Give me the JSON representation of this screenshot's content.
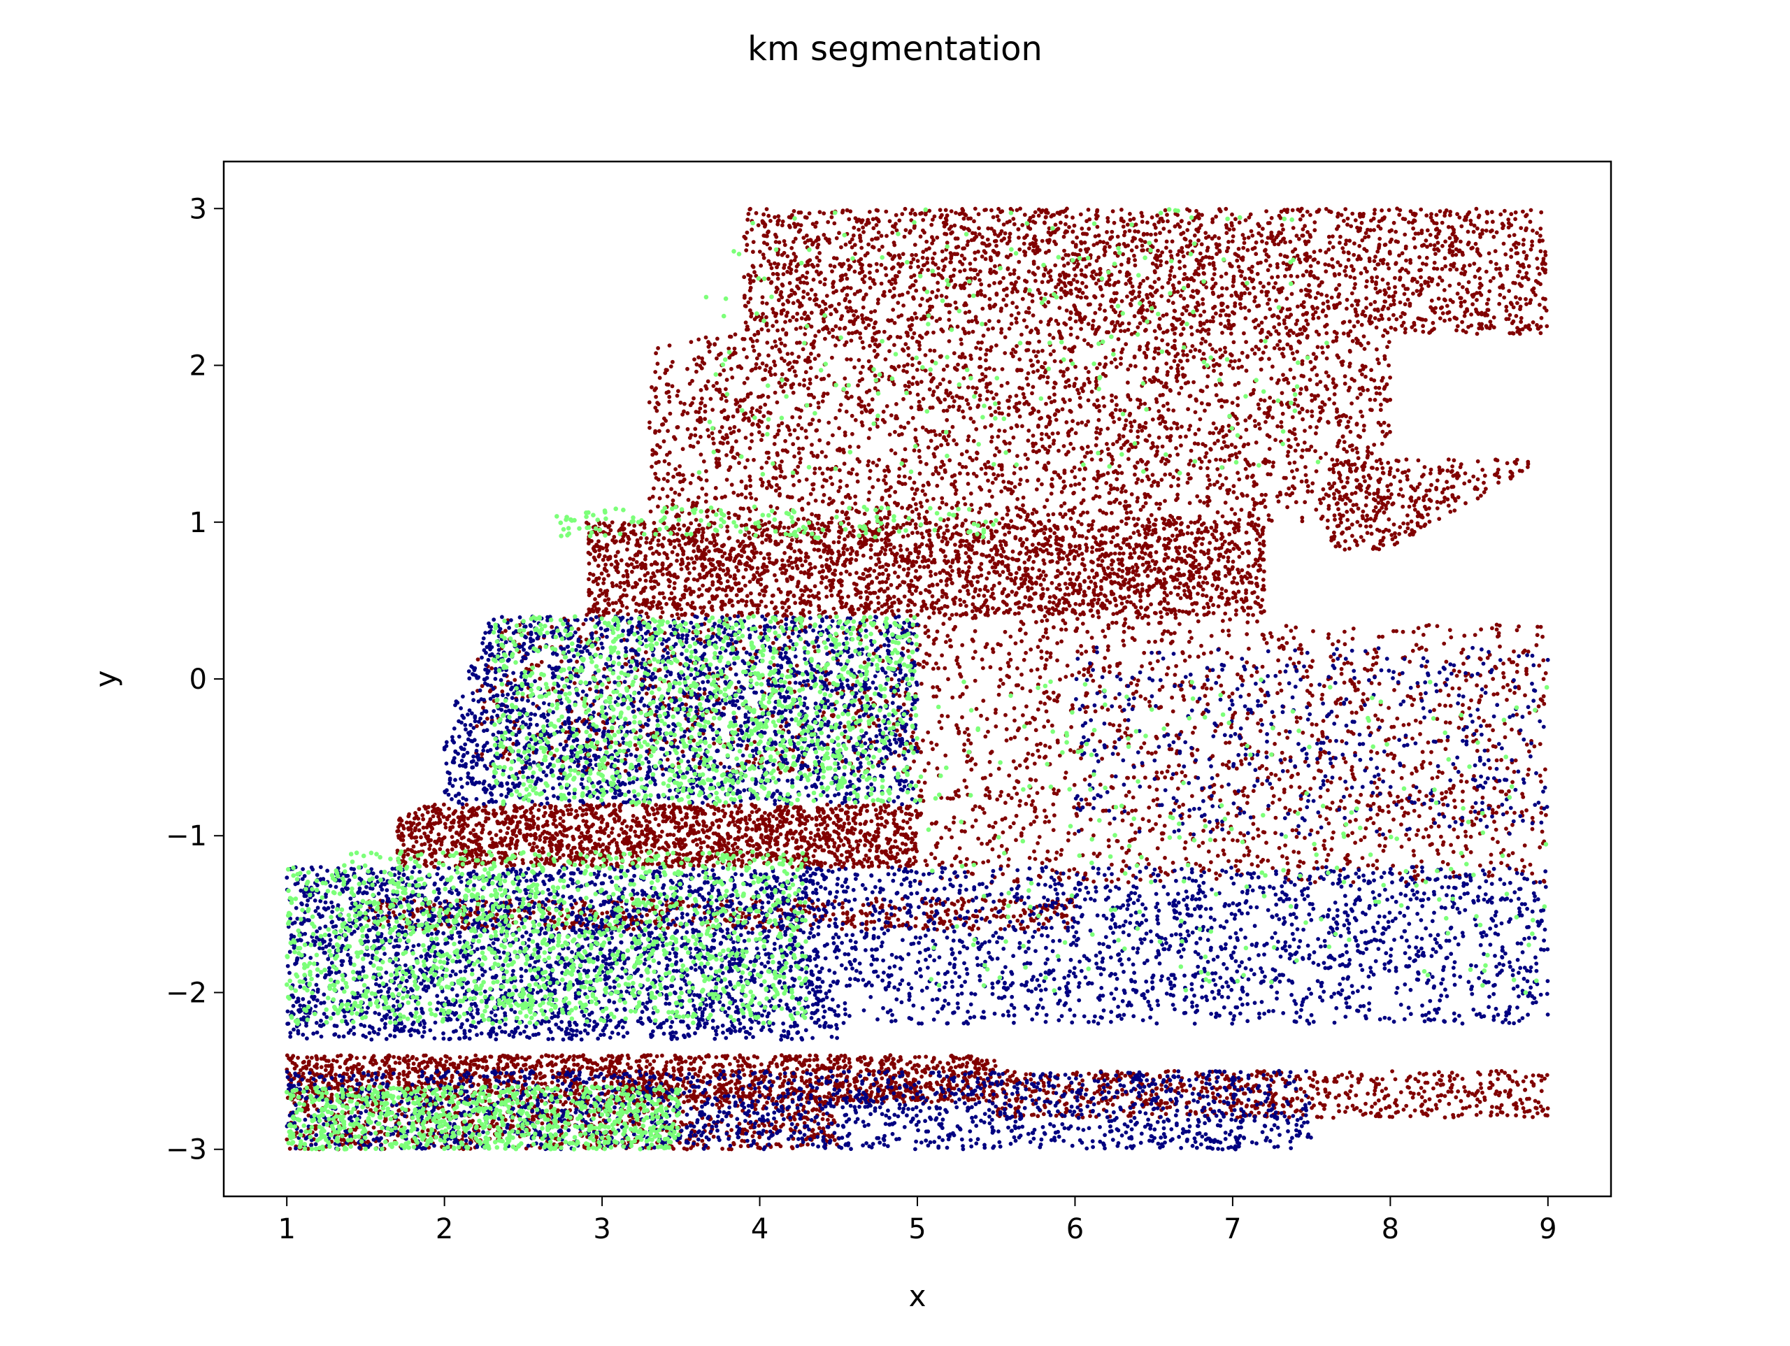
{
  "chart_data": {
    "type": "scatter",
    "title": "km segmentation",
    "xlabel": "x",
    "ylabel": "y",
    "xlim": [
      0.6,
      9.4
    ],
    "ylim": [
      -3.3,
      3.3
    ],
    "xticks": [
      1,
      2,
      3,
      4,
      5,
      6,
      7,
      8,
      9
    ],
    "yticks": [
      -3,
      -2,
      -1,
      0,
      1,
      2,
      3
    ],
    "tick_labels_x": [
      "1",
      "2",
      "3",
      "4",
      "5",
      "6",
      "7",
      "8",
      "9"
    ],
    "tick_labels_y": [
      "−3",
      "−2",
      "−1",
      "0",
      "1",
      "2",
      "3"
    ],
    "grid": false,
    "legend": "none",
    "series": [
      {
        "color": "#800000",
        "regions": [
          {
            "x": [
              3.9,
              9.0
            ],
            "y": [
              2.2,
              3.0
            ],
            "n": 2600
          },
          {
            "x": [
              3.3,
              8.0
            ],
            "y": [
              1.0,
              2.2
            ],
            "n": 2400
          },
          {
            "x": [
              2.9,
              7.2
            ],
            "y": [
              0.4,
              1.0
            ],
            "n": 2600
          },
          {
            "x": [
              7.6,
              9.0
            ],
            "y": [
              0.8,
              1.4
            ],
            "n": 300
          },
          {
            "x": [
              2.2,
              9.0
            ],
            "y": [
              -0.6,
              0.4
            ],
            "n": 1500
          },
          {
            "x": [
              1.7,
              5.0
            ],
            "y": [
              -1.2,
              -0.8
            ],
            "n": 1800
          },
          {
            "x": [
              5.0,
              9.0
            ],
            "y": [
              -1.3,
              -0.6
            ],
            "n": 700
          },
          {
            "x": [
              1.0,
              5.5
            ],
            "y": [
              -2.7,
              -2.4
            ],
            "n": 1800
          },
          {
            "x": [
              5.5,
              9.0
            ],
            "y": [
              -2.8,
              -2.5
            ],
            "n": 700
          },
          {
            "x": [
              1.0,
              4.5
            ],
            "y": [
              -3.0,
              -2.7
            ],
            "n": 700
          },
          {
            "x": [
              1.5,
              6.0
            ],
            "y": [
              -1.6,
              -1.4
            ],
            "n": 600
          }
        ]
      },
      {
        "color": "#000080",
        "regions": [
          {
            "x": [
              2.0,
              5.0
            ],
            "y": [
              -0.8,
              0.4
            ],
            "n": 2200
          },
          {
            "x": [
              1.0,
              4.5
            ],
            "y": [
              -2.3,
              -1.2
            ],
            "n": 2800
          },
          {
            "x": [
              4.5,
              9.0
            ],
            "y": [
              -2.2,
              -1.2
            ],
            "n": 1700
          },
          {
            "x": [
              1.0,
              7.5
            ],
            "y": [
              -3.0,
              -2.5
            ],
            "n": 1800
          },
          {
            "x": [
              6.0,
              9.0
            ],
            "y": [
              -1.0,
              0.2
            ],
            "n": 500
          }
        ]
      },
      {
        "color": "#7cff79",
        "regions": [
          {
            "x": [
              2.3,
              5.0
            ],
            "y": [
              -0.8,
              0.4
            ],
            "n": 1400
          },
          {
            "x": [
              1.0,
              4.3
            ],
            "y": [
              -2.2,
              -1.1
            ],
            "n": 1600
          },
          {
            "x": [
              1.0,
              3.5
            ],
            "y": [
              -3.0,
              -2.6
            ],
            "n": 900
          },
          {
            "x": [
              3.6,
              7.6
            ],
            "y": [
              1.3,
              3.0
            ],
            "n": 220
          },
          {
            "x": [
              2.6,
              5.5
            ],
            "y": [
              0.9,
              1.1
            ],
            "n": 150
          },
          {
            "x": [
              5.0,
              9.0
            ],
            "y": [
              -2.0,
              0.0
            ],
            "n": 250
          }
        ]
      }
    ]
  }
}
